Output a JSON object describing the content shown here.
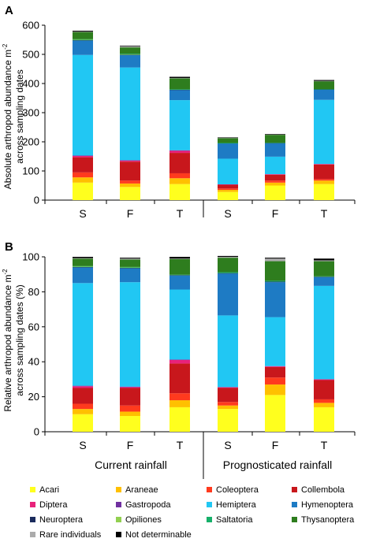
{
  "chart_data": [
    {
      "panel": "A",
      "type": "bar",
      "stacked": true,
      "ylabel_line1": "Absolute arthropod abundance m",
      "ylabel_sup": "-2",
      "ylabel_line2": "across sampling dates",
      "ylim": [
        0,
        600
      ],
      "yticks": [
        "0",
        "100",
        "200",
        "300",
        "400",
        "500",
        "600"
      ],
      "categories": [
        "S",
        "F",
        "T",
        "S",
        "F",
        "T"
      ],
      "series": [
        {
          "name": "Acari",
          "values": [
            60,
            45,
            55,
            28,
            50,
            55
          ]
        },
        {
          "name": "Araneae",
          "values": [
            18,
            12,
            20,
            7,
            10,
            12
          ]
        },
        {
          "name": "Coleoptera",
          "values": [
            17,
            10,
            17,
            5,
            7,
            5
          ]
        },
        {
          "name": "Collembola",
          "values": [
            52,
            65,
            70,
            13,
            20,
            50
          ]
        },
        {
          "name": "Diptera",
          "values": [
            5,
            4,
            8,
            1,
            2,
            2
          ]
        },
        {
          "name": "Gastropoda",
          "values": [
            1,
            1,
            1,
            0,
            0,
            0
          ]
        },
        {
          "name": "Hemiptera",
          "values": [
            345,
            318,
            172,
            88,
            60,
            220
          ]
        },
        {
          "name": "Hymenoptera",
          "values": [
            50,
            43,
            35,
            53,
            46,
            35
          ]
        },
        {
          "name": "Neuroptera",
          "values": [
            1,
            1,
            1,
            0,
            1,
            1
          ]
        },
        {
          "name": "Opiliones",
          "values": [
            1,
            1,
            0,
            0,
            0,
            0
          ]
        },
        {
          "name": "Saltatoria",
          "values": [
            2,
            2,
            1,
            1,
            1,
            1
          ]
        },
        {
          "name": "Thysanoptera",
          "values": [
            25,
            22,
            38,
            17,
            27,
            27
          ]
        },
        {
          "name": "Rare individuals",
          "values": [
            1,
            4,
            1,
            1,
            2,
            1
          ]
        },
        {
          "name": "Not determinable",
          "values": [
            3,
            2,
            4,
            1,
            1,
            3
          ]
        }
      ]
    },
    {
      "panel": "B",
      "type": "bar",
      "stacked": true,
      "ylabel_line1": "Relative arthropod abundance m",
      "ylabel_sup": "-2",
      "ylabel_line2": "across sampling dates (%)",
      "ylim": [
        0,
        100
      ],
      "yticks": [
        "0",
        "20",
        "40",
        "60",
        "80",
        "100"
      ],
      "categories": [
        "S",
        "F",
        "T",
        "S",
        "F",
        "T"
      ],
      "groups": [
        "Current rainfall",
        "Prognosticated rainfall"
      ],
      "series": [
        {
          "name": "Acari",
          "values": [
            10,
            9,
            14,
            13,
            21,
            14
          ]
        },
        {
          "name": "Araneae",
          "values": [
            3,
            2.5,
            4,
            2,
            6,
            2.5
          ]
        },
        {
          "name": "Coleoptera",
          "values": [
            3,
            3.5,
            4,
            2,
            4,
            2
          ]
        },
        {
          "name": "Collembola",
          "values": [
            9,
            10,
            17,
            8,
            6,
            11
          ]
        },
        {
          "name": "Diptera",
          "values": [
            1,
            0.5,
            2,
            0.5,
            0.5,
            0.5
          ]
        },
        {
          "name": "Gastropoda",
          "values": [
            0.3,
            0.3,
            0.3,
            0,
            0,
            0
          ]
        },
        {
          "name": "Hemiptera",
          "values": [
            58.7,
            59.7,
            40,
            41,
            28,
            53.4
          ]
        },
        {
          "name": "Hymenoptera",
          "values": [
            9,
            8,
            8,
            24,
            20,
            5
          ]
        },
        {
          "name": "Neuroptera",
          "values": [
            0.2,
            0.2,
            0.2,
            0.2,
            0.3,
            0.2
          ]
        },
        {
          "name": "Opiliones",
          "values": [
            0.2,
            0.2,
            0,
            0,
            0,
            0
          ]
        },
        {
          "name": "Saltatoria",
          "values": [
            0.3,
            0.3,
            0.3,
            0.5,
            0.5,
            0.3
          ]
        },
        {
          "name": "Thysanoptera",
          "values": [
            4.3,
            4.3,
            9,
            8.3,
            11.2,
            8.6
          ]
        },
        {
          "name": "Rare individuals",
          "values": [
            0.3,
            0.5,
            0.2,
            0.5,
            1.5,
            0.5
          ]
        },
        {
          "name": "Not determinable",
          "values": [
            0.7,
            0.5,
            1.0,
            0.5,
            0.5,
            1.0
          ]
        }
      ]
    }
  ],
  "legend": {
    "items": [
      {
        "name": "Acari",
        "color": "#FFFF1E"
      },
      {
        "name": "Araneae",
        "color": "#FFC000"
      },
      {
        "name": "Coleoptera",
        "color": "#FF3A1E"
      },
      {
        "name": "Collembola",
        "color": "#C8171C"
      },
      {
        "name": "Diptera",
        "color": "#E8227A"
      },
      {
        "name": "Gastropoda",
        "color": "#7030A0"
      },
      {
        "name": "Hemiptera",
        "color": "#21C7F3"
      },
      {
        "name": "Hymenoptera",
        "color": "#1E7BC4"
      },
      {
        "name": "Neuroptera",
        "color": "#1A2B5C"
      },
      {
        "name": "Opiliones",
        "color": "#92D050"
      },
      {
        "name": "Saltatoria",
        "color": "#16B06A"
      },
      {
        "name": "Thysanoptera",
        "color": "#2E7D1E"
      },
      {
        "name": "Rare individuals",
        "color": "#ABABAB"
      },
      {
        "name": "Not determinable",
        "color": "#000000"
      }
    ]
  }
}
